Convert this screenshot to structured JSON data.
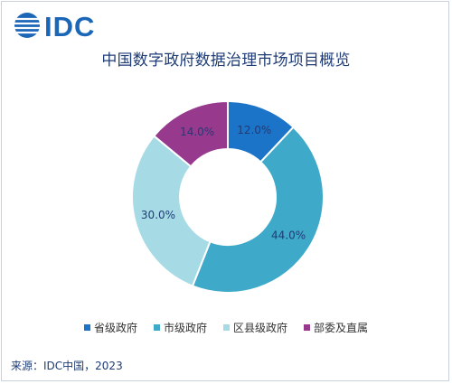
{
  "header": {
    "logo_text": "IDC"
  },
  "chart_data": {
    "type": "pie",
    "title": "中国数字政府数据治理市场项目概览",
    "donut": true,
    "categories": [
      "省级政府",
      "市级政府",
      "区县级政府",
      "部委及直属"
    ],
    "values": [
      12.0,
      44.0,
      30.0,
      14.0
    ],
    "value_labels": [
      "12.0%",
      "44.0%",
      "30.0%",
      "14.0%"
    ],
    "colors": [
      "#1c74c8",
      "#3ea9c9",
      "#a6dbe6",
      "#973a8e"
    ],
    "legend_position": "bottom"
  },
  "footer": {
    "source": "来源：IDC中国，2023"
  }
}
